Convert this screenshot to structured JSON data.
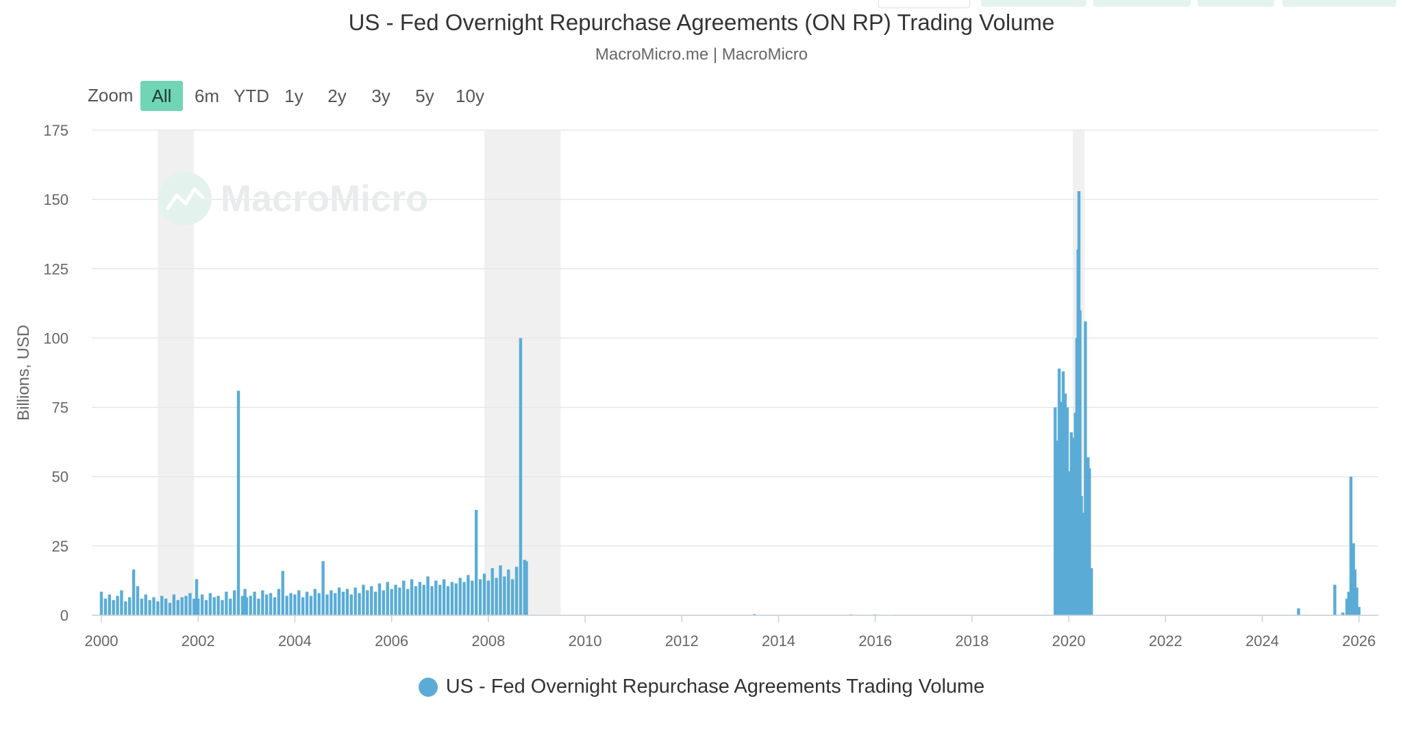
{
  "chart_meta": {
    "title": "US - Fed Overnight Repurchase Agreements (ON RP) Trading Volume",
    "subtitle": "MacroMicro.me | MacroMicro",
    "watermark": "MacroMicro",
    "colors": {
      "series": "#5aacd6",
      "recession_band": "#f0f0f0",
      "gridline": "#e6e6e6",
      "zoom_active": "#6fd5b5",
      "top_tabs": "#e5f3ee"
    }
  },
  "zoom": {
    "label": "Zoom",
    "buttons": [
      "All",
      "6m",
      "YTD",
      "1y",
      "2y",
      "3y",
      "5y",
      "10y"
    ],
    "active": "All"
  },
  "legend": {
    "label": "US - Fed Overnight Repurchase Agreements Trading Volume"
  },
  "chart_data": {
    "type": "bar",
    "title": "US - Fed Overnight Repurchase Agreements (ON RP) Trading Volume",
    "subtitle": "MacroMicro.me | MacroMicro",
    "ylabel": "Billions, USD",
    "xlabel": "",
    "ylim": [
      0,
      175
    ],
    "yticks": [
      0,
      25,
      50,
      75,
      100,
      125,
      150,
      175
    ],
    "xlim": [
      "2000-01-01",
      "2026-03-01"
    ],
    "xticks": [
      "2000",
      "2002",
      "2004",
      "2006",
      "2008",
      "2010",
      "2012",
      "2014",
      "2016",
      "2018",
      "2020",
      "2022",
      "2024",
      "2026"
    ],
    "grid": true,
    "legend_position": "bottom-center",
    "recession_bands": [
      {
        "start": "2001-03-01",
        "end": "2001-11-30"
      },
      {
        "start": "2007-12-01",
        "end": "2009-06-30"
      },
      {
        "start": "2020-02-01",
        "end": "2020-04-30"
      }
    ],
    "series": [
      {
        "name": "US - Fed Overnight Repurchase Agreements Trading Volume",
        "color": "#5aacd6",
        "points": [
          [
            "2000-01",
            8.5
          ],
          [
            "2000-02",
            6.0
          ],
          [
            "2000-03",
            7.5
          ],
          [
            "2000-04",
            5.5
          ],
          [
            "2000-05",
            7.0
          ],
          [
            "2000-06",
            9.0
          ],
          [
            "2000-07",
            5.0
          ],
          [
            "2000-08",
            6.5
          ],
          [
            "2000-09",
            16.5
          ],
          [
            "2000-10",
            10.5
          ],
          [
            "2000-11",
            6.0
          ],
          [
            "2000-12",
            7.5
          ],
          [
            "2001-01",
            5.5
          ],
          [
            "2001-02",
            6.5
          ],
          [
            "2001-03",
            5.0
          ],
          [
            "2001-04",
            7.0
          ],
          [
            "2001-05",
            6.0
          ],
          [
            "2001-06",
            4.5
          ],
          [
            "2001-07",
            7.5
          ],
          [
            "2001-08",
            5.5
          ],
          [
            "2001-09",
            6.5
          ],
          [
            "2001-10",
            7.0
          ],
          [
            "2001-11",
            8.0
          ],
          [
            "2001-12",
            6.0
          ],
          [
            "2001-12-20",
            13.0
          ],
          [
            "2002-01",
            6.0
          ],
          [
            "2002-02",
            7.5
          ],
          [
            "2002-03",
            5.5
          ],
          [
            "2002-04",
            8.0
          ],
          [
            "2002-05",
            6.5
          ],
          [
            "2002-06",
            7.0
          ],
          [
            "2002-07",
            5.5
          ],
          [
            "2002-08",
            8.5
          ],
          [
            "2002-09",
            6.0
          ],
          [
            "2002-10",
            9.0
          ],
          [
            "2002-11",
            81.0
          ],
          [
            "2002-12",
            7.0
          ],
          [
            "2002-12-20",
            9.5
          ],
          [
            "2003-01",
            6.5
          ],
          [
            "2003-02",
            7.0
          ],
          [
            "2003-03",
            8.5
          ],
          [
            "2003-04",
            6.0
          ],
          [
            "2003-05",
            9.0
          ],
          [
            "2003-06",
            7.5
          ],
          [
            "2003-07",
            8.0
          ],
          [
            "2003-08",
            6.5
          ],
          [
            "2003-09",
            9.5
          ],
          [
            "2003-10",
            16.0
          ],
          [
            "2003-11",
            7.0
          ],
          [
            "2003-12",
            8.0
          ],
          [
            "2004-01",
            7.5
          ],
          [
            "2004-02",
            9.0
          ],
          [
            "2004-03",
            6.5
          ],
          [
            "2004-04",
            8.5
          ],
          [
            "2004-05",
            7.0
          ],
          [
            "2004-06",
            9.5
          ],
          [
            "2004-07",
            8.0
          ],
          [
            "2004-08",
            19.5
          ],
          [
            "2004-09",
            7.5
          ],
          [
            "2004-10",
            9.0
          ],
          [
            "2004-11",
            8.0
          ],
          [
            "2004-12",
            10.0
          ],
          [
            "2005-01",
            8.5
          ],
          [
            "2005-02",
            9.5
          ],
          [
            "2005-03",
            7.5
          ],
          [
            "2005-04",
            10.0
          ],
          [
            "2005-05",
            8.0
          ],
          [
            "2005-06",
            11.0
          ],
          [
            "2005-07",
            9.0
          ],
          [
            "2005-08",
            10.5
          ],
          [
            "2005-09",
            8.5
          ],
          [
            "2005-10",
            11.5
          ],
          [
            "2005-11",
            9.0
          ],
          [
            "2005-12",
            12.0
          ],
          [
            "2006-01",
            9.5
          ],
          [
            "2006-02",
            11.0
          ],
          [
            "2006-03",
            10.0
          ],
          [
            "2006-04",
            12.5
          ],
          [
            "2006-05",
            9.5
          ],
          [
            "2006-06",
            13.0
          ],
          [
            "2006-07",
            10.5
          ],
          [
            "2006-08",
            12.0
          ],
          [
            "2006-09",
            11.0
          ],
          [
            "2006-10",
            14.0
          ],
          [
            "2006-11",
            10.5
          ],
          [
            "2006-12",
            12.5
          ],
          [
            "2007-01",
            11.0
          ],
          [
            "2007-02",
            13.0
          ],
          [
            "2007-03",
            10.5
          ],
          [
            "2007-04",
            12.0
          ],
          [
            "2007-05",
            11.5
          ],
          [
            "2007-06",
            13.5
          ],
          [
            "2007-07",
            12.0
          ],
          [
            "2007-08",
            14.5
          ],
          [
            "2007-09",
            12.5
          ],
          [
            "2007-10",
            38.0
          ],
          [
            "2007-11",
            13.0
          ],
          [
            "2007-12",
            15.0
          ],
          [
            "2008-01",
            12.5
          ],
          [
            "2008-02",
            17.0
          ],
          [
            "2008-03",
            13.5
          ],
          [
            "2008-04",
            18.0
          ],
          [
            "2008-05",
            14.0
          ],
          [
            "2008-06",
            16.5
          ],
          [
            "2008-07",
            13.0
          ],
          [
            "2008-08",
            17.5
          ],
          [
            "2008-09",
            100.0
          ],
          [
            "2008-10",
            20.0
          ],
          [
            "2008-10-15",
            19.5
          ],
          [
            "2013-07",
            0.4
          ],
          [
            "2015-07",
            0.3
          ],
          [
            "2016-01",
            0.3
          ],
          [
            "2016-06",
            0.2
          ],
          [
            "2019-09-20",
            75.0
          ],
          [
            "2019-10-05",
            63.0
          ],
          [
            "2019-10-20",
            89.0
          ],
          [
            "2019-11-05",
            77.0
          ],
          [
            "2019-11-20",
            88.0
          ],
          [
            "2019-12-05",
            80.0
          ],
          [
            "2019-12-20",
            75.0
          ],
          [
            "2020-01-05",
            52.0
          ],
          [
            "2020-01-20",
            66.0
          ],
          [
            "2020-02-05",
            64.0
          ],
          [
            "2020-02-20",
            73.0
          ],
          [
            "2020-03-01",
            100.0
          ],
          [
            "2020-03-10",
            132.0
          ],
          [
            "2020-03-17",
            153.0
          ],
          [
            "2020-03-25",
            110.0
          ],
          [
            "2020-04-05",
            43.0
          ],
          [
            "2020-04-15",
            22.0
          ],
          [
            "2020-04-25",
            37.0
          ],
          [
            "2020-05-05",
            106.0
          ],
          [
            "2020-05-15",
            42.0
          ],
          [
            "2020-05-25",
            57.0
          ],
          [
            "2020-06-05",
            53.0
          ],
          [
            "2020-06-20",
            17.0
          ],
          [
            "2024-10",
            2.5
          ],
          [
            "2025-07",
            11.0
          ],
          [
            "2025-09",
            1.0
          ],
          [
            "2025-10",
            6.0
          ],
          [
            "2025-10-15",
            8.5
          ],
          [
            "2025-11-01",
            50.0
          ],
          [
            "2025-11-10",
            11.0
          ],
          [
            "2025-11-20",
            26.0
          ],
          [
            "2025-12-01",
            16.5
          ],
          [
            "2025-12-15",
            10.0
          ],
          [
            "2026-01-01",
            3.0
          ]
        ]
      }
    ]
  }
}
